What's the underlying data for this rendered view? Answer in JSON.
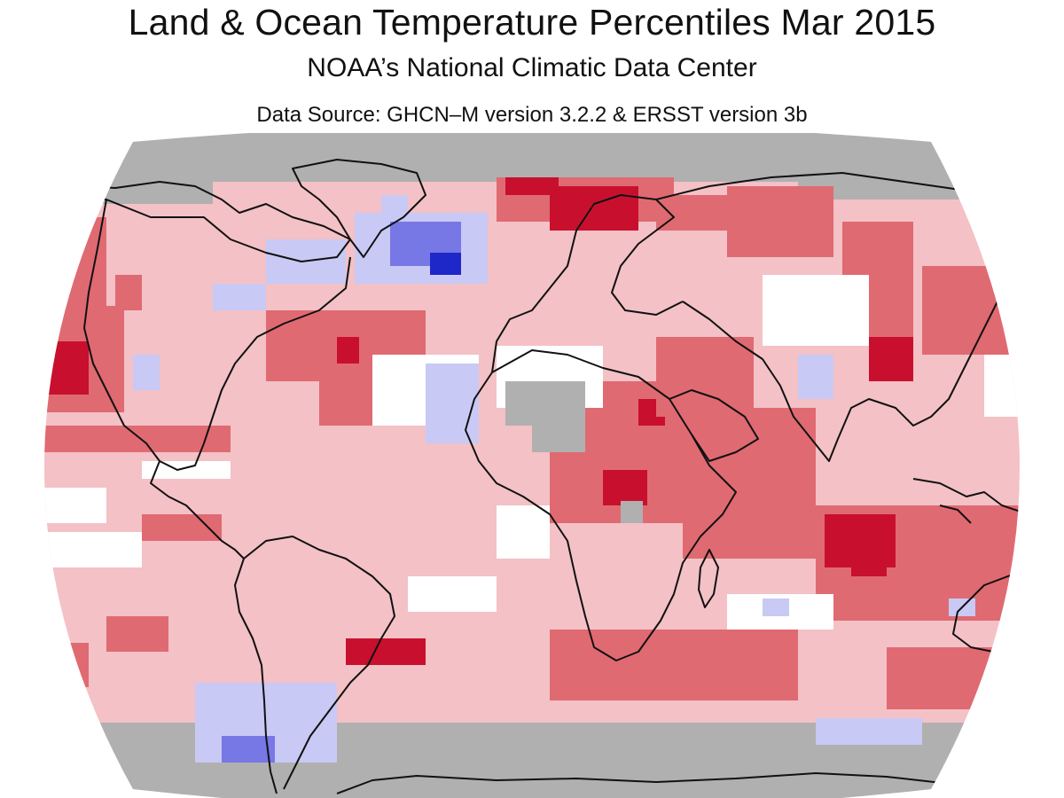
{
  "header": {
    "title": "Land & Ocean Temperature Percentiles Mar 2015",
    "subtitle": "NOAA’s National Climatic Data Center",
    "source": "Data Source: GHCN–M version 3.2.2 & ERSST version 3b"
  },
  "colors": {
    "record_warmest": "#c8102e",
    "much_warmer": "#e06a72",
    "warmer": "#f3c1c6",
    "near_average": "#ffffff",
    "cooler": "#c9c9f5",
    "much_cooler": "#7777e6",
    "record_coolest": "#1e28c8",
    "no_data": "#b0b0b0",
    "coastline": "#111111"
  },
  "map": {
    "projection": "robinson",
    "region": "global",
    "month": "Mar 2015"
  }
}
